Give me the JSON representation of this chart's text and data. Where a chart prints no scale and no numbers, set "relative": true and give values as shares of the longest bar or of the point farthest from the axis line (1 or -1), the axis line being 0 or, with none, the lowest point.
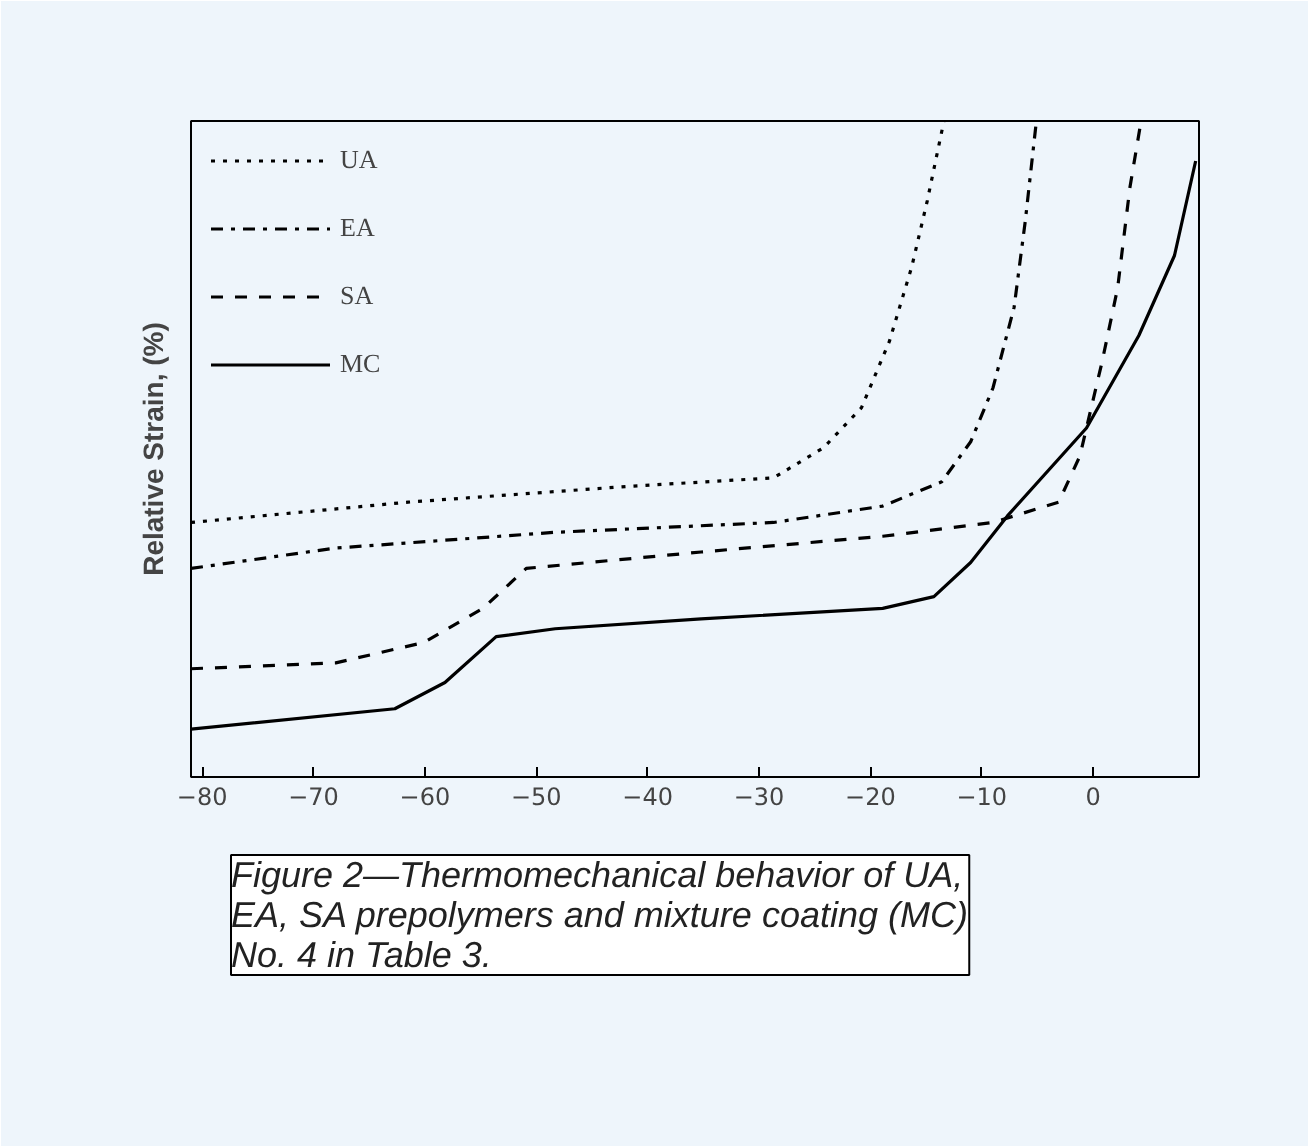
{
  "chart_data": {
    "type": "line",
    "relative": true,
    "ylabel": "Relative Strain, (%)",
    "xlim": [
      -81,
      9.5
    ],
    "xticks": [
      -80,
      -70,
      -60,
      -50,
      -40,
      -30,
      -20,
      -10,
      0
    ],
    "legend": "top left",
    "grid": false,
    "series": [
      {
        "name": "UA",
        "color": "#000000",
        "line_style": "dotted",
        "x": [
          -81,
          -61.5,
          -41.8,
          -28.7,
          -24.2,
          -20.8,
          -18.3,
          -16.3,
          -14.9,
          -13.4
        ],
        "values": [
          0.388,
          0.419,
          0.443,
          0.456,
          0.502,
          0.563,
          0.664,
          0.777,
          0.878,
          1.0
        ]
      },
      {
        "name": "EA",
        "color": "#000000",
        "line_style": "dashdot",
        "x": [
          -81,
          -68,
          -48.3,
          -28.7,
          -18.9,
          -13.6,
          -11,
          -9,
          -7.1,
          -6.1,
          -5.1
        ],
        "values": [
          0.318,
          0.349,
          0.373,
          0.388,
          0.413,
          0.45,
          0.511,
          0.593,
          0.716,
          0.847,
          1.0
        ]
      },
      {
        "name": "SA",
        "color": "#000000",
        "line_style": "dashed",
        "x": [
          -81,
          -68,
          -60.1,
          -54.8,
          -50.9,
          -35.2,
          -18.9,
          -9,
          -3.1,
          -1.2,
          0.8,
          2.2,
          3.3,
          4.3
        ],
        "values": [
          0.165,
          0.174,
          0.205,
          0.257,
          0.318,
          0.343,
          0.367,
          0.388,
          0.419,
          0.489,
          0.633,
          0.746,
          0.899,
          1.0
        ]
      },
      {
        "name": "MC",
        "color": "#000000",
        "line_style": "solid",
        "x": [
          -81,
          -62.7,
          -58.2,
          -53.6,
          -48.3,
          -35.2,
          -18.9,
          -14.3,
          -11,
          -7.7,
          -0.6,
          4.1,
          7.3,
          9.2
        ],
        "values": [
          0.073,
          0.104,
          0.144,
          0.214,
          0.226,
          0.241,
          0.257,
          0.275,
          0.327,
          0.398,
          0.532,
          0.673,
          0.795,
          0.939
        ]
      }
    ],
    "annotations": [
      "Figure 2—Thermomechanical behavior of UA, EA, SA prepolymers and mixture coating (MC) No. 4 in Table 3."
    ]
  }
}
